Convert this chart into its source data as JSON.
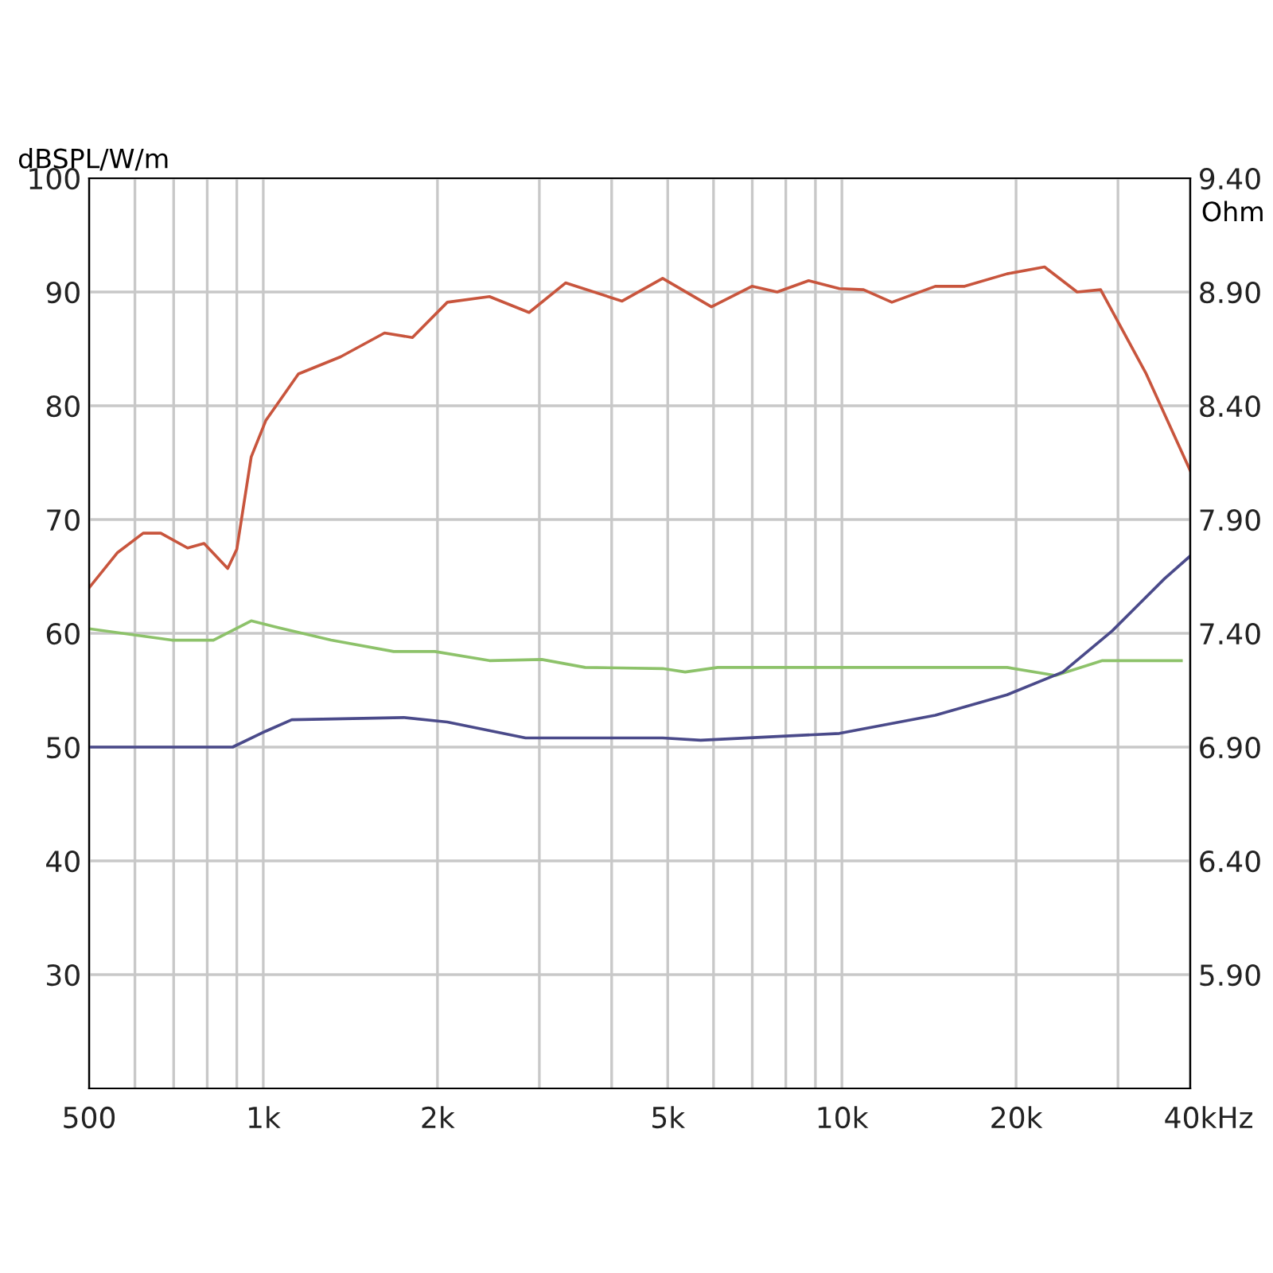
{
  "chart_data": {
    "type": "line",
    "xlabel": "Hz",
    "ylabel": "dBSPL/W/m",
    "y2label": "Ohm",
    "log": "x",
    "grid": true,
    "xlim": [
      500,
      40000
    ],
    "ylim": [
      20,
      100
    ],
    "y2lim": [
      5.4,
      9.4
    ],
    "xticks": [
      {
        "value": 500,
        "label": "500"
      },
      {
        "value": 600,
        "label": null
      },
      {
        "value": 700,
        "label": null
      },
      {
        "value": 800,
        "label": null
      },
      {
        "value": 900,
        "label": null
      },
      {
        "value": 1000,
        "label": "1k"
      },
      {
        "value": 2000,
        "label": "2k"
      },
      {
        "value": 3000,
        "label": null
      },
      {
        "value": 4000,
        "label": null
      },
      {
        "value": 5000,
        "label": "5k"
      },
      {
        "value": 6000,
        "label": null
      },
      {
        "value": 7000,
        "label": null
      },
      {
        "value": 8000,
        "label": null
      },
      {
        "value": 9000,
        "label": null
      },
      {
        "value": 10000,
        "label": "10k"
      },
      {
        "value": 20000,
        "label": "20k"
      },
      {
        "value": 30000,
        "label": null
      },
      {
        "value": 40000,
        "label": "40k"
      }
    ],
    "yticks": [
      30,
      40,
      50,
      60,
      70,
      80,
      90,
      100
    ],
    "y2ticks": [
      {
        "value": 5.9,
        "label": "5.90"
      },
      {
        "value": 6.4,
        "label": "6.40"
      },
      {
        "value": 6.9,
        "label": "6.90"
      },
      {
        "value": 7.4,
        "label": "7.40"
      },
      {
        "value": 7.9,
        "label": "7.90"
      },
      {
        "value": 8.4,
        "label": "8.40"
      },
      {
        "value": 8.9,
        "label": "8.90"
      },
      {
        "value": 9.4,
        "label": "9.40"
      }
    ],
    "series": [
      {
        "color": "#c8553d",
        "x": [
          500,
          560,
          620,
          665,
          740,
          790,
          868,
          900,
          953,
          1010,
          1150,
          1360,
          1620,
          1810,
          2080,
          2460,
          2880,
          3330,
          4170,
          4900,
          5950,
          6990,
          7730,
          8760,
          9900,
          10900,
          12200,
          14500,
          16300,
          19300,
          22400,
          25500,
          28000,
          33500,
          40000
        ],
        "values": [
          64.0,
          67.1,
          68.8,
          68.8,
          67.5,
          67.9,
          65.7,
          67.4,
          75.5,
          78.7,
          82.8,
          84.3,
          86.4,
          86.0,
          89.1,
          89.6,
          88.2,
          90.8,
          89.2,
          91.2,
          88.7,
          90.5,
          90.0,
          91.0,
          90.3,
          90.2,
          89.1,
          90.5,
          90.5,
          91.6,
          92.2,
          90.0,
          90.2,
          82.9,
          74.3
        ]
      },
      {
        "color": "#8dc26a",
        "x": [
          500,
          695,
          820,
          953,
          1060,
          1310,
          1680,
          1980,
          2460,
          3030,
          3600,
          4900,
          5360,
          6100,
          19300,
          23400,
          28200,
          38600
        ],
        "values": [
          60.4,
          59.4,
          59.4,
          61.1,
          60.5,
          59.4,
          58.4,
          58.4,
          57.6,
          57.7,
          57.0,
          56.9,
          56.6,
          57.0,
          57.0,
          56.3,
          57.6,
          57.6
        ]
      },
      {
        "color": "#4a4a8a",
        "axis": "y2",
        "x": [
          500,
          885,
          1010,
          1120,
          1750,
          2080,
          2840,
          4900,
          5700,
          9900,
          14500,
          19300,
          24100,
          29300,
          36100,
          40000
        ],
        "values": [
          6.9,
          6.9,
          6.97,
          7.02,
          7.03,
          7.01,
          6.94,
          6.94,
          6.93,
          6.96,
          7.04,
          7.13,
          7.23,
          7.41,
          7.64,
          7.74
        ]
      }
    ]
  }
}
